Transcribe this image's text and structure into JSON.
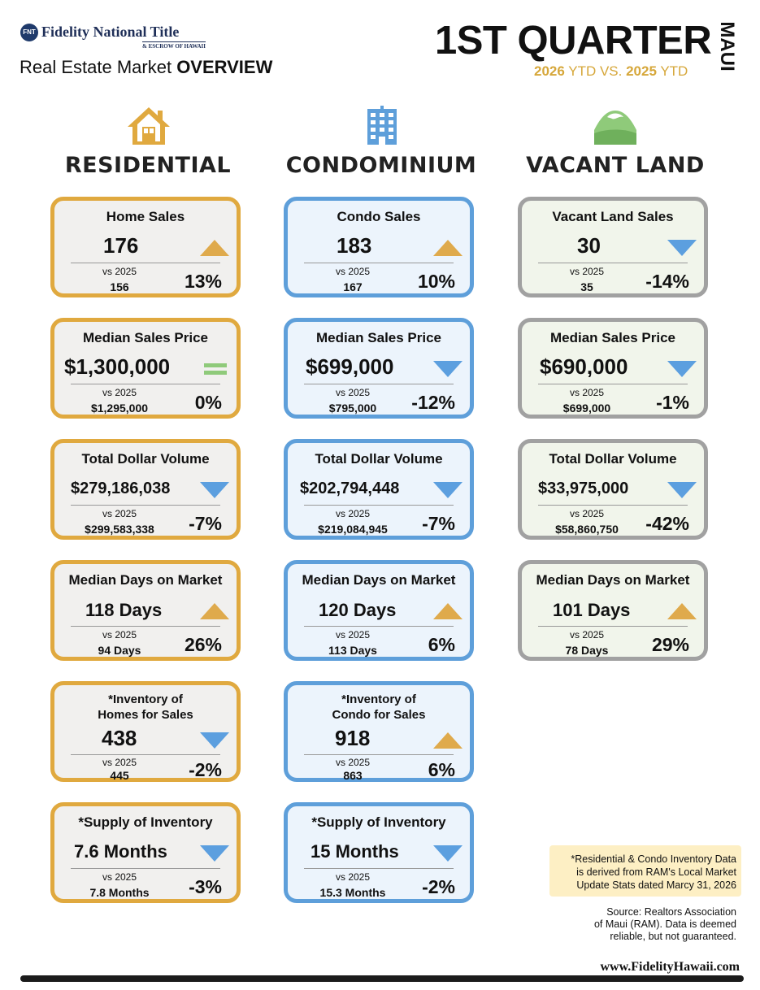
{
  "header": {
    "logo_mark": "FNT",
    "logo_name": "Fidelity National Title",
    "logo_sub": "& ESCROW OF HAWAII",
    "subtitle_pre": "Real Estate Market ",
    "subtitle_bold": "OVERVIEW",
    "quarter": "1ST QUARTER",
    "region": "MAUI",
    "ytd_current": "2026",
    "ytd_text1": " YTD VS. ",
    "ytd_previous": "2025",
    "ytd_text2": " YTD"
  },
  "columns": {
    "residential": {
      "title": "RESIDENTIAL",
      "icon": "house-icon"
    },
    "condominium": {
      "title": "CONDOMINIUM",
      "icon": "building-icon"
    },
    "land": {
      "title": "VACANT LAND",
      "icon": "mountain-icon"
    }
  },
  "colors": {
    "residential": "#e0a93f",
    "condominium": "#5e9fda",
    "land": "#a1a1a1",
    "up": "#dfaa4c",
    "down": "#5c9fdf",
    "flat": "#8fca7a"
  },
  "residential": {
    "sales": {
      "title": "Home Sales",
      "value": "176",
      "vs": "vs 2025",
      "prev": "156",
      "pct": "13%",
      "trend": "up"
    },
    "price": {
      "title": "Median Sales Price",
      "value": "$1,300,000",
      "vs": "vs 2025",
      "prev": "$1,295,000",
      "pct": "0%",
      "trend": "flat"
    },
    "volume": {
      "title": "Total Dollar Volume",
      "value": "$279,186,038",
      "vs": "vs 2025",
      "prev": "$299,583,338",
      "pct": "-7%",
      "trend": "down"
    },
    "dom": {
      "title": "Median Days on Market",
      "value": "118  Days",
      "vs": "vs 2025",
      "prev": "94   Days",
      "pct": "26%",
      "trend": "up"
    },
    "inventory": {
      "title_line1": "*Inventory of",
      "title_line2": "Homes for Sales",
      "value": "438",
      "vs": "vs 2025",
      "prev": "445",
      "pct": "-2%",
      "trend": "down"
    },
    "supply": {
      "title": "*Supply of Inventory",
      "value": "7.6 Months",
      "vs": "vs 2025",
      "prev": "7.8 Months",
      "pct": "-3%",
      "trend": "down"
    }
  },
  "condo": {
    "sales": {
      "title": "Condo Sales",
      "value": "183",
      "vs": "vs 2025",
      "prev": "167",
      "pct": "10%",
      "trend": "up"
    },
    "price": {
      "title": "Median Sales Price",
      "value": "$699,000",
      "vs": "vs 2025",
      "prev": "$795,000",
      "pct": "-12%",
      "trend": "down"
    },
    "volume": {
      "title": "Total Dollar Volume",
      "value": "$202,794,448",
      "vs": "vs 2025",
      "prev": "$219,084,945",
      "pct": "-7%",
      "trend": "down"
    },
    "dom": {
      "title": "Median Days on Market",
      "value": "120  Days",
      "vs": "vs 2025",
      "prev": "113   Days",
      "pct": "6%",
      "trend": "up"
    },
    "inventory": {
      "title_line1": "*Inventory of",
      "title_line2": "Condo for Sales",
      "value": "918",
      "vs": "vs 2025",
      "prev": "863",
      "pct": "6%",
      "trend": "up"
    },
    "supply": {
      "title": "*Supply of Inventory",
      "value": "15 Months",
      "vs": "vs 2025",
      "prev": "15.3 Months",
      "pct": "-2%",
      "trend": "down"
    }
  },
  "land": {
    "sales": {
      "title": "Vacant Land Sales",
      "value": "30",
      "vs": "vs 2025",
      "prev": "35",
      "pct": "-14%",
      "trend": "down"
    },
    "price": {
      "title": "Median Sales Price",
      "value": "$690,000",
      "vs": "vs 2025",
      "prev": "$699,000",
      "pct": "-1%",
      "trend": "down"
    },
    "volume": {
      "title": "Total Dollar Volume",
      "value": "$33,975,000",
      "vs": "vs 2025",
      "prev": "$58,860,750",
      "pct": "-42%",
      "trend": "down"
    },
    "dom": {
      "title": "Median Days on Market",
      "value": "101  Days",
      "vs": "vs 2025",
      "prev": "78   Days",
      "pct": "29%",
      "trend": "up"
    }
  },
  "footer": {
    "note_line1": "*Residential & Condo Inventory Data",
    "note_line2": "is derived from RAM's Local Market",
    "note_line3": "Update Stats dated Marcy 31, 2026",
    "source_line1": "Source: Realtors Association",
    "source_line2": "of Maui (RAM). Data is deemed",
    "source_line3": "reliable, but not guaranteed.",
    "website": "www.FidelityHawaii.com"
  }
}
